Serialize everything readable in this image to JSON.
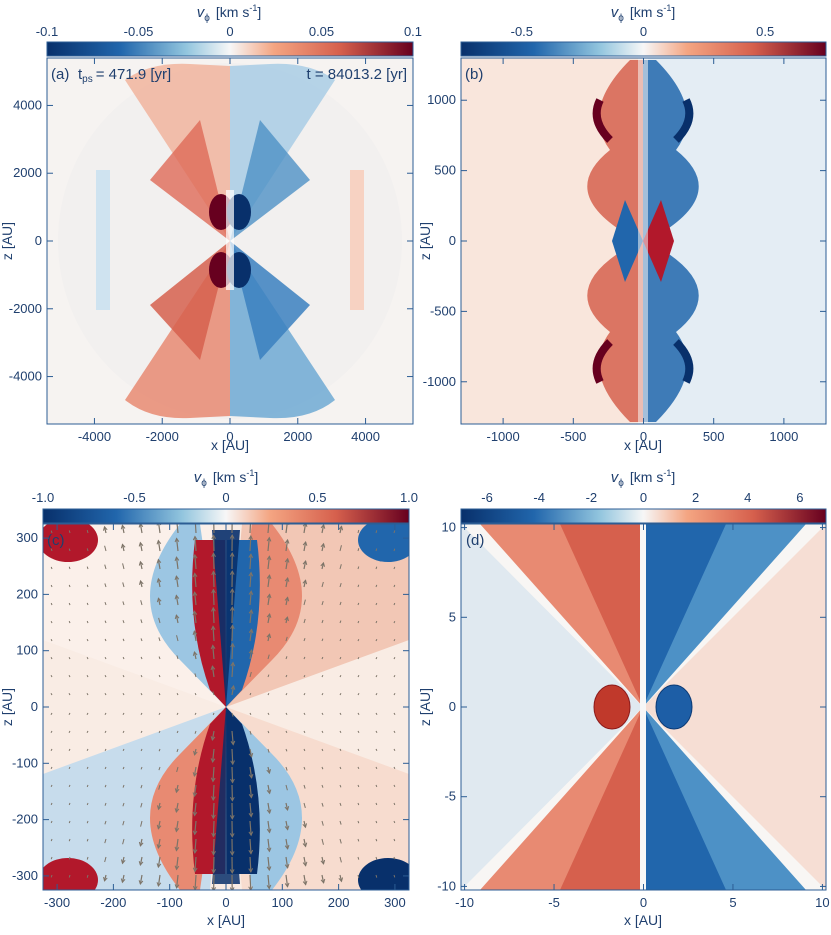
{
  "colors": {
    "axis": "#2c5d94",
    "text": "#1f3f6e",
    "neg_dark": "#08306b",
    "neg": "#2166ac",
    "neg_light": "#92c5de",
    "zero": "#f7f7f7",
    "pos_light": "#f4a582",
    "pos": "#d6604d",
    "pos_dark": "#67001f"
  },
  "chart_data": [
    {
      "type": "heatmap",
      "panel": "(a)",
      "colorbar": {
        "label_main": "v",
        "label_sub": "ϕ",
        "label_unit": "[km s",
        "label_exp": "-1",
        "label_close": "]",
        "min": -0.1,
        "max": 0.1,
        "ticks": [
          "-0.1",
          "-0.05",
          "0",
          "0.05",
          "0.1"
        ],
        "tick_values": [
          -0.1,
          -0.05,
          0,
          0.05,
          0.1
        ]
      },
      "xlabel": "x [AU]",
      "ylabel": "z [AU]",
      "xlim": [
        -5400,
        5400
      ],
      "ylim": [
        -5400,
        5400
      ],
      "xticks": [
        -4000,
        -2000,
        0,
        2000,
        4000
      ],
      "yticks": [
        -4000,
        -2000,
        0,
        2000,
        4000
      ],
      "annotations": {
        "tps_prefix": "t",
        "tps_sub": "ps",
        "tps_value": "= 471.9 [yr]",
        "time": "t = 84013.2 [yr]"
      },
      "peak_abs_vphi": 0.1
    },
    {
      "type": "heatmap",
      "panel": "(b)",
      "colorbar": {
        "label_main": "v",
        "label_sub": "ϕ",
        "label_unit": "[km s",
        "label_exp": "-1",
        "label_close": "]",
        "min": -0.75,
        "max": 0.75,
        "ticks": [
          "-0.5",
          "0",
          "0.5"
        ],
        "tick_values": [
          -0.5,
          0,
          0.5
        ]
      },
      "xlabel": "x [AU]",
      "ylabel": "z [AU]",
      "xlim": [
        -1300,
        1300
      ],
      "ylim": [
        -1300,
        1300
      ],
      "xticks": [
        -1000,
        -500,
        0,
        500,
        1000
      ],
      "yticks": [
        -1000,
        -500,
        0,
        500,
        1000
      ],
      "peak_abs_vphi": 0.75
    },
    {
      "type": "heatmap",
      "panel": "(c)",
      "colorbar": {
        "label_main": "v",
        "label_sub": "ϕ",
        "label_unit": "[km s",
        "label_exp": "-1",
        "label_close": "]",
        "min": -1.0,
        "max": 1.0,
        "ticks": [
          "-1.0",
          "-0.5",
          "0",
          "0.5",
          "1.0"
        ],
        "tick_values": [
          -1.0,
          -0.5,
          0,
          0.5,
          1.0
        ]
      },
      "xlabel": "x [AU]",
      "ylabel": "z [AU]",
      "xlim": [
        -325,
        325
      ],
      "ylim": [
        -325,
        325
      ],
      "xticks": [
        -300,
        -200,
        -100,
        0,
        100,
        200,
        300
      ],
      "yticks": [
        -300,
        -200,
        -100,
        0,
        100,
        200,
        300
      ],
      "velocity_vectors": true,
      "peak_abs_vphi": 1.0
    },
    {
      "type": "heatmap",
      "panel": "(d)",
      "colorbar": {
        "label_main": "v",
        "label_sub": "ϕ",
        "label_unit": "[km s",
        "label_exp": "-1",
        "label_close": "]",
        "min": -7,
        "max": 7,
        "ticks": [
          "-6",
          "-4",
          "-2",
          "0",
          "2",
          "4",
          "6"
        ],
        "tick_values": [
          -6,
          -4,
          -2,
          0,
          2,
          4,
          6
        ]
      },
      "xlabel": "x [AU]",
      "ylabel": "z [AU]",
      "xlim": [
        -10.2,
        10.2
      ],
      "ylim": [
        -10.2,
        10.2
      ],
      "xticks": [
        -10,
        -5,
        0,
        5,
        10
      ],
      "yticks": [
        -10,
        -5,
        0,
        5,
        10
      ],
      "peak_abs_vphi": 7
    }
  ]
}
